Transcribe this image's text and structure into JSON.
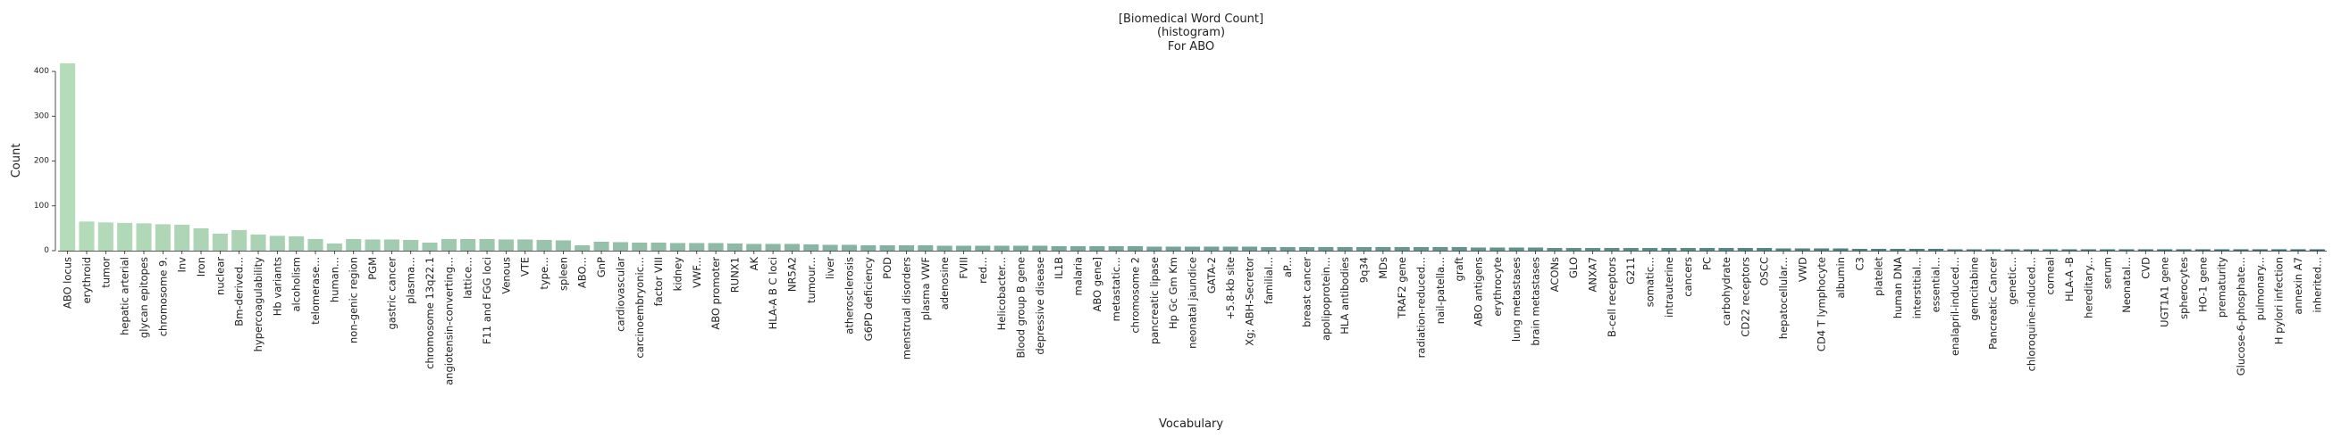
{
  "chart_data": {
    "type": "bar",
    "title_lines": [
      "[Biomedical Word Count]",
      "(histogram)",
      "For ABO"
    ],
    "xlabel": "Vocabulary",
    "ylabel": "Count",
    "ylim": [
      0,
      420
    ],
    "yticks": [
      0,
      100,
      200,
      300,
      400
    ],
    "grid": false,
    "color_start": "#b5dcb9",
    "color_end": "#2e6a78",
    "categories": [
      "ABO locus",
      "erythroid",
      "tumor",
      "hepatic arterial",
      "glycan epitopes",
      "chromosome 9.",
      "Inv",
      "Iron",
      "nuclear",
      "Bm-derived...",
      "hypercoagulability",
      "Hb variants",
      "alcoholism",
      "telomerase...",
      "human...",
      "non-genic region",
      "PGM",
      "gastric cancer",
      "plasma...",
      "chromosome 13q22.1",
      "angiotensin-converting...",
      "lattice...",
      "F11 and FGG loci",
      "Venous",
      "VTE",
      "type...",
      "spleen",
      "ABO...",
      "GnP",
      "cardiovascular",
      "carcinoembryonic...",
      "factor VIII",
      "kidney",
      "VWF...",
      "ABO promoter",
      "RUNX1",
      "AK",
      "HLA-A B C loci",
      "NR5A2",
      "tumour...",
      "liver",
      "atherosclerosis",
      "G6PD deficiency",
      "POD",
      "menstrual disorders",
      "plasma VWF",
      "adenosine",
      "FVIII",
      "red...",
      "Helicobacter...",
      "Blood group B gene",
      "depressive disease",
      "IL1B",
      "malaria",
      "ABO gene]",
      "metastatic...",
      "chromosome 2",
      "pancreatic lipase",
      "Hp Gc Gm Km",
      "neonatal jaundice",
      "GATA-2",
      "+5.8-kb site",
      "Xg; ABH-Secretor",
      "familial...",
      "aP...",
      "breast cancer",
      "apolipoprotein...",
      "HLA antibodies",
      "9q34",
      "MDs",
      "TRAF2 gene",
      "radiation-reduced...",
      "nail-patella...",
      "graft",
      "ABO antigens",
      "erythrocyte",
      "lung metastases",
      "brain metastases",
      "ACONs",
      "GLO",
      "ANXA7",
      "B-cell receptors",
      "G211",
      "somatic...",
      "intrauterine",
      "cancers",
      "PC",
      "carbohydrate",
      "CD22 receptors",
      "OSCC",
      "hepatocellular...",
      "VWD",
      "CD4 T lymphocyte",
      "albumin",
      "C3",
      "platelet",
      "human DNA",
      "interstitial...",
      "essential...",
      "enalapril-induced...",
      "gemcitabine",
      "Pancreatic Cancer",
      "genetic...",
      "chloroquine-induced...",
      "corneal",
      "HLA-A -B",
      "hereditary...",
      "serum",
      "Neonatal...",
      "CVD",
      "UGT1A1 gene",
      "spherocytes",
      "HO-1 gene",
      "prematurity",
      "Glucose-6-phosphate...",
      "pulmonary...",
      "H pylori infection",
      "annexin A7",
      "inherited..."
    ],
    "values": [
      418,
      65,
      63,
      62,
      61,
      59,
      58,
      50,
      38,
      46,
      36,
      33,
      32,
      26,
      16,
      26,
      25,
      25,
      24,
      18,
      26,
      26,
      26,
      25,
      25,
      24,
      23,
      12,
      20,
      19,
      18,
      18,
      17,
      17,
      17,
      16,
      15,
      15,
      15,
      14,
      13,
      13,
      12,
      12,
      12,
      12,
      11,
      11,
      11,
      11,
      11,
      11,
      10,
      10,
      10,
      10,
      10,
      9,
      9,
      9,
      9,
      9,
      9,
      8,
      8,
      8,
      8,
      8,
      8,
      8,
      8,
      8,
      8,
      8,
      7,
      7,
      7,
      7,
      6,
      6,
      6,
      6,
      6,
      6,
      6,
      6,
      6,
      6,
      6,
      6,
      5,
      5,
      5,
      5,
      4,
      4,
      4,
      4,
      4,
      3,
      3,
      3,
      3,
      3,
      3,
      3,
      3,
      3,
      3,
      3,
      3,
      3,
      3,
      3,
      3,
      3,
      3,
      3,
      3
    ]
  }
}
